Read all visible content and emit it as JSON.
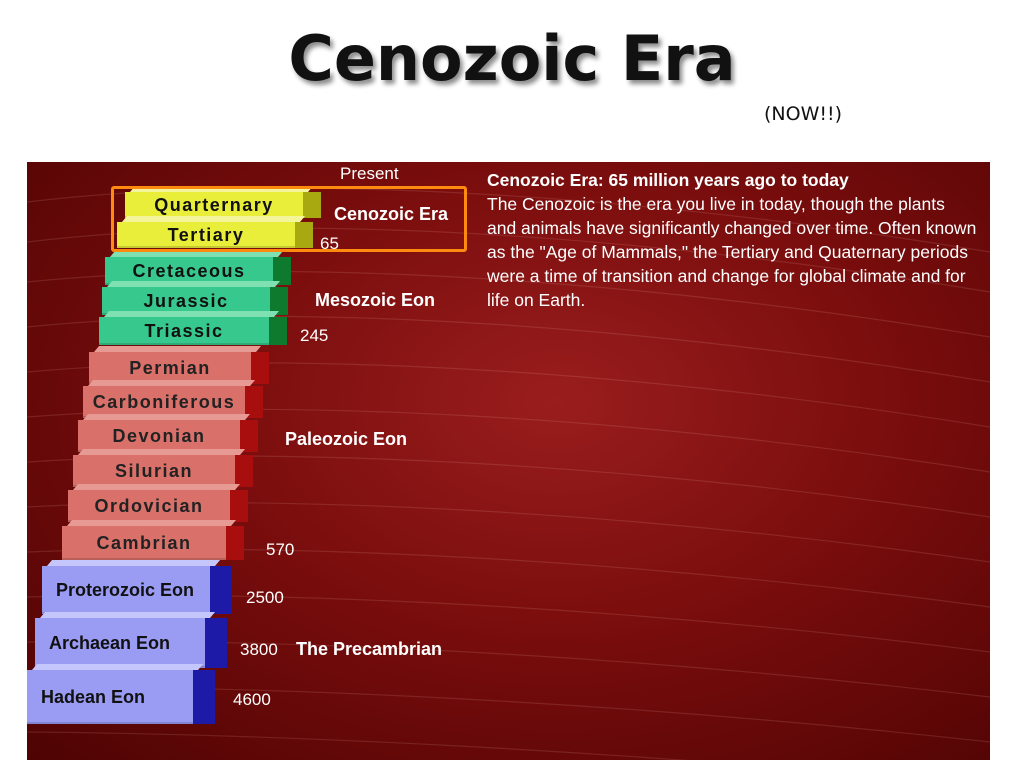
{
  "slide": {
    "title": "Cenozoic Era",
    "subtitle": "(NOW!!)"
  },
  "diagram": {
    "present_label": "Present",
    "layers": [
      {
        "name": "Quarternary",
        "group": "cenozoic"
      },
      {
        "name": "Tertiary",
        "group": "cenozoic"
      },
      {
        "name": "Cretaceous",
        "group": "mesozoic"
      },
      {
        "name": "Jurassic",
        "group": "mesozoic"
      },
      {
        "name": "Triassic",
        "group": "mesozoic"
      },
      {
        "name": "Permian",
        "group": "paleozoic"
      },
      {
        "name": "Carboniferous",
        "group": "paleozoic"
      },
      {
        "name": "Devonian",
        "group": "paleozoic"
      },
      {
        "name": "Silurian",
        "group": "paleozoic"
      },
      {
        "name": "Ordovician",
        "group": "paleozoic"
      },
      {
        "name": "Cambrian",
        "group": "paleozoic"
      },
      {
        "name": "Proterozoic Eon",
        "group": "precambrian"
      },
      {
        "name": "Archaean Eon",
        "group": "precambrian"
      },
      {
        "name": "Hadean Eon",
        "group": "precambrian"
      }
    ],
    "group_labels": {
      "cenozoic": "Cenozoic Era",
      "mesozoic": "Mesozoic Eon",
      "paleozoic": "Paleozoic Eon",
      "precambrian": "The Precambrian"
    },
    "ages": {
      "tertiary_end": "65",
      "mesozoic_end": "245",
      "paleozoic_end": "570",
      "proterozoic_end": "2500",
      "archaean_end": "3800",
      "hadean_end": "4600"
    },
    "colors": {
      "cenozoic": "#e8ee3a",
      "mesozoic": "#36c88c",
      "paleozoic": "#d9706a",
      "precambrian": "#9a9cf4",
      "highlight_box": "#ff8a10"
    }
  },
  "description": {
    "title": "Cenozoic Era: 65 million years ago to today",
    "body": "The Cenozoic is the era you live in today, though the plants and animals have significantly changed over time. Often known as the \"Age of Mammals,\" the Tertiary and Quaternary periods were a time of transition and change for global climate and for life on Earth."
  }
}
